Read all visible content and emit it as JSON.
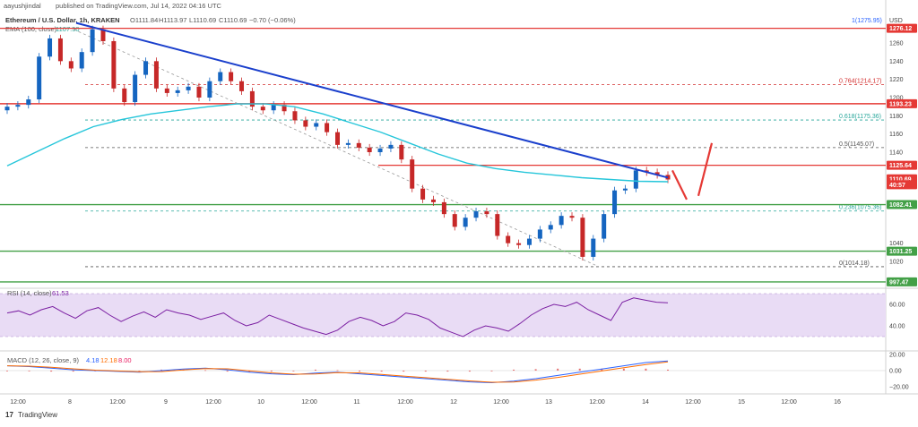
{
  "header": {
    "author": "aayushjindal",
    "published": "published on TradingView.com, Jul 14, 2022 04:16 UTC",
    "symbol": "Ethereum / U.S. Dollar, 1h, KRAKEN",
    "open": "O1111.84",
    "high": "H1113.97",
    "low": "L1110.69",
    "close": "C1110.69",
    "change": "−0.70 (−0.06%)",
    "ema_label": "EMA (100, close)",
    "ema_value": "1107.50"
  },
  "currency": "USD",
  "top_marker": "1(1275.95)",
  "fib_levels": [
    {
      "label": "0.764(1214.17)",
      "price": 1214.17,
      "color": "#d32f2f"
    },
    {
      "label": "0.618(1175.36)",
      "price": 1175.36,
      "color": "#26a69a"
    },
    {
      "label": "0.5(1145.07)",
      "price": 1145.07,
      "color": "#555555"
    },
    {
      "label": "0.236(1075.36)",
      "price": 1075.36,
      "color": "#26a69a"
    },
    {
      "label": "0(1014.18)",
      "price": 1014.18,
      "color": "#555555"
    }
  ],
  "price_badges": [
    {
      "label": "1276.12",
      "price": 1276.12,
      "color": "#e53935"
    },
    {
      "label": "1193.23",
      "price": 1193.23,
      "color": "#e53935"
    },
    {
      "label": "1125.64",
      "price": 1125.64,
      "color": "#e53935"
    },
    {
      "label": "1110.69",
      "price": 1110.69,
      "color": "#e53935"
    },
    {
      "label": "40:57",
      "price": 1104.2,
      "color": "#e53935"
    },
    {
      "label": "1082.41",
      "price": 1082.41,
      "color": "#43a047"
    },
    {
      "label": "1031.25",
      "price": 1031.25,
      "color": "#43a047"
    },
    {
      "label": "997.47",
      "price": 997.47,
      "color": "#43a047"
    }
  ],
  "price_ticks": [
    1260,
    1240,
    1220,
    1200,
    1180,
    1160,
    1140,
    1040,
    1020
  ],
  "rsi": {
    "label": "RSI (14, close)",
    "value": "61.53",
    "ticks": [
      60,
      40
    ]
  },
  "macd": {
    "label": "MACD (12, 26, close, 9)",
    "v1": "4.18",
    "v2": "12.18",
    "v3": "8.00",
    "ticks": [
      "20.00",
      "0.00",
      "−20.00"
    ]
  },
  "time_labels": [
    "12:00",
    "8",
    "12:00",
    "9",
    "12:00",
    "10",
    "12:00",
    "11",
    "12:00",
    "12",
    "12:00",
    "13",
    "12:00",
    "14",
    "12:00",
    "15",
    "12:00",
    "16"
  ],
  "branding": "TradingView",
  "chart_data": {
    "type": "line",
    "title": "Ethereum / U.S. Dollar, 1h, KRAKEN",
    "ylabel": "USD",
    "ylim": [
      997.47,
      1285
    ],
    "series": [
      {
        "name": "ETH/USD close (approx.)",
        "values": [
          1190,
          1192,
          1198,
          1245,
          1265,
          1240,
          1232,
          1250,
          1275,
          1262,
          1210,
          1195,
          1225,
          1240,
          1210,
          1205,
          1208,
          1212,
          1200,
          1218,
          1228,
          1218,
          1207,
          1190,
          1186,
          1192,
          1185,
          1175,
          1168,
          1172,
          1162,
          1148,
          1150,
          1145,
          1140,
          1144,
          1148,
          1132,
          1100,
          1088,
          1085,
          1072,
          1058,
          1068,
          1075,
          1072,
          1048,
          1040,
          1038,
          1045,
          1055,
          1060,
          1070,
          1068,
          1025,
          1045,
          1072,
          1098,
          1100,
          1120,
          1118,
          1115,
          1110
        ]
      },
      {
        "name": "EMA (100, close)",
        "values": [
          1125,
          1140,
          1155,
          1168,
          1176,
          1182,
          1186,
          1190,
          1193,
          1193,
          1190,
          1182,
          1172,
          1162,
          1150,
          1138,
          1128,
          1122,
          1118,
          1115,
          1112,
          1110,
          1108,
          1107.5
        ]
      }
    ]
  }
}
